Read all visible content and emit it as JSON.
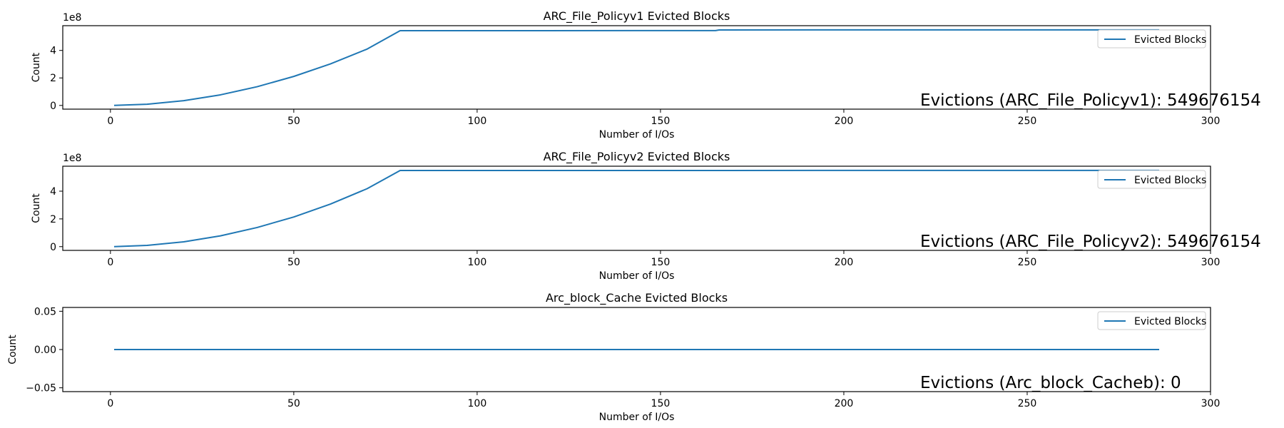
{
  "chart_data": [
    {
      "type": "line",
      "title": "ARC_File_Policyv1 Evicted Blocks",
      "xlabel": "Number of I/Os",
      "ylabel": "Count",
      "offset_label": "1e8",
      "xlim": [
        -13,
        300
      ],
      "ylim": [
        -27000000.0,
        580000000.0
      ],
      "xticks": [
        0,
        50,
        100,
        150,
        200,
        250,
        300
      ],
      "xtick_labels": [
        "0",
        "50",
        "100",
        "150",
        "200",
        "250",
        "300"
      ],
      "yticks": [
        0,
        200000000,
        400000000
      ],
      "ytick_labels": [
        "0",
        "2",
        "4"
      ],
      "legend": {
        "position": "top-right",
        "entries": [
          "Evicted Blocks"
        ]
      },
      "annotation": "Evictions (ARC_File_Policyv1): 549676154",
      "series": [
        {
          "name": "Evicted Blocks",
          "color": "#1f77b4",
          "x": [
            1,
            10,
            20,
            30,
            40,
            50,
            60,
            70,
            79,
            100,
            150,
            165,
            166,
            200,
            250,
            286
          ],
          "y": [
            0,
            8700000,
            34500000,
            77000000,
            136000000,
            211000000,
            302000000,
            410000000,
            543500000,
            543800000,
            544300000,
            544500000,
            549000000,
            549300000,
            549600000,
            549676154
          ]
        }
      ]
    },
    {
      "type": "line",
      "title": "ARC_File_Policyv2 Evicted Blocks",
      "xlabel": "Number of I/Os",
      "ylabel": "Count",
      "offset_label": "1e8",
      "xlim": [
        -13,
        300
      ],
      "ylim": [
        -27000000.0,
        580000000.0
      ],
      "xticks": [
        0,
        50,
        100,
        150,
        200,
        250,
        300
      ],
      "xtick_labels": [
        "0",
        "50",
        "100",
        "150",
        "200",
        "250",
        "300"
      ],
      "yticks": [
        0,
        200000000,
        400000000
      ],
      "ytick_labels": [
        "0",
        "2",
        "4"
      ],
      "legend": {
        "position": "top-right",
        "entries": [
          "Evicted Blocks"
        ]
      },
      "annotation": "Evictions (ARC_File_Policyv2): 549676154",
      "series": [
        {
          "name": "Evicted Blocks",
          "color": "#1f77b4",
          "x": [
            1,
            10,
            20,
            30,
            40,
            50,
            60,
            70,
            79,
            100,
            150,
            200,
            250,
            286
          ],
          "y": [
            0,
            8800000,
            34800000,
            78000000,
            138000000,
            214000000,
            307000000,
            418000000,
            549000000,
            549200000,
            549400000,
            549500000,
            549600000,
            549676154
          ]
        }
      ]
    },
    {
      "type": "line",
      "title": "Arc_block_Cache Evicted Blocks",
      "xlabel": "Number of I/Os",
      "ylabel": "Count",
      "offset_label": "",
      "xlim": [
        -13,
        300
      ],
      "ylim": [
        -0.055,
        0.055
      ],
      "xticks": [
        0,
        50,
        100,
        150,
        200,
        250,
        300
      ],
      "xtick_labels": [
        "0",
        "50",
        "100",
        "150",
        "200",
        "250",
        "300"
      ],
      "yticks": [
        -0.05,
        0,
        0.05
      ],
      "ytick_labels": [
        "−0.05",
        "0.00",
        "0.05"
      ],
      "legend": {
        "position": "top-right",
        "entries": [
          "Evicted Blocks"
        ]
      },
      "annotation": "Evictions (Arc_block_Cacheb): 0",
      "series": [
        {
          "name": "Evicted Blocks",
          "color": "#1f77b4",
          "x": [
            1,
            286
          ],
          "y": [
            0,
            0
          ]
        }
      ]
    }
  ]
}
